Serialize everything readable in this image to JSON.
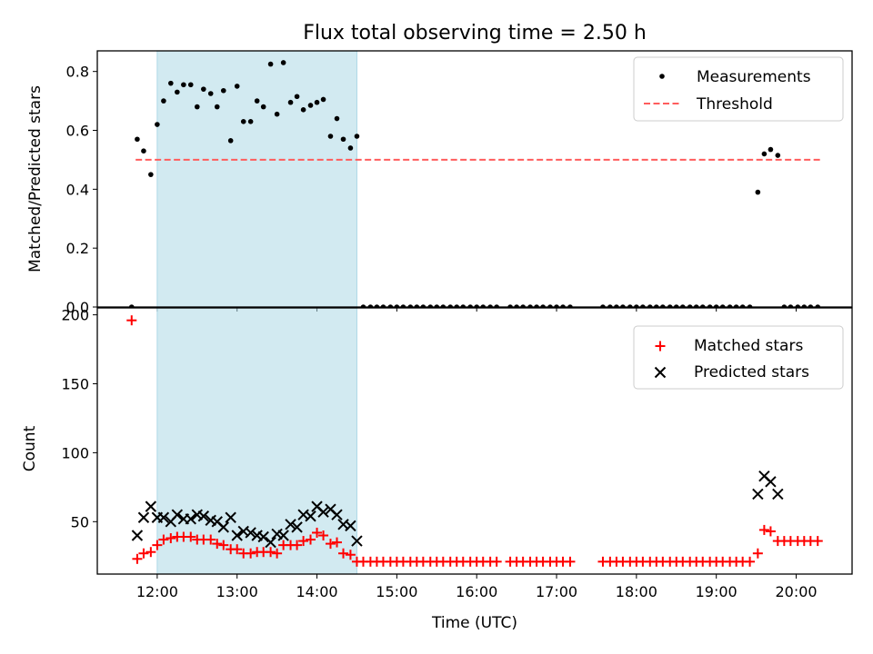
{
  "title": "Flux total observing time = 2.50 h",
  "colors": {
    "shade": "#add8e6",
    "measurement": "#000000",
    "threshold": "#ff5c5c",
    "matched": "#ff0000",
    "predicted": "#000000"
  },
  "chart_data": [
    {
      "type": "scatter",
      "ylabel": "Matched/Predicted stars",
      "xlim": [
        11.25,
        20.7
      ],
      "ylim": [
        0,
        0.87
      ],
      "yticks": [
        0.0,
        0.2,
        0.4,
        0.6,
        0.8
      ],
      "ytick_labels": [
        "0.0",
        "0.2",
        "0.4",
        "0.6",
        "0.8"
      ],
      "shaded_span": [
        12.0,
        14.5
      ],
      "legend": {
        "placement": "top-right",
        "entries": [
          "Measurements",
          "Threshold"
        ]
      },
      "threshold": {
        "name": "Threshold",
        "y": 0.5,
        "x_range": [
          11.73,
          20.3
        ],
        "style": "dashed"
      },
      "series": [
        {
          "name": "Measurements",
          "marker": "dot",
          "points": [
            [
              11.68,
              0.0
            ],
            [
              11.75,
              0.57
            ],
            [
              11.83,
              0.53
            ],
            [
              11.92,
              0.45
            ],
            [
              12.0,
              0.62
            ],
            [
              12.08,
              0.7
            ],
            [
              12.17,
              0.76
            ],
            [
              12.25,
              0.73
            ],
            [
              12.33,
              0.755
            ],
            [
              12.42,
              0.755
            ],
            [
              12.5,
              0.68
            ],
            [
              12.58,
              0.74
            ],
            [
              12.67,
              0.725
            ],
            [
              12.75,
              0.68
            ],
            [
              12.83,
              0.735
            ],
            [
              12.92,
              0.565
            ],
            [
              13.0,
              0.75
            ],
            [
              13.08,
              0.63
            ],
            [
              13.17,
              0.63
            ],
            [
              13.25,
              0.7
            ],
            [
              13.33,
              0.68
            ],
            [
              13.42,
              0.825
            ],
            [
              13.5,
              0.655
            ],
            [
              13.58,
              0.83
            ],
            [
              13.67,
              0.695
            ],
            [
              13.75,
              0.715
            ],
            [
              13.83,
              0.67
            ],
            [
              13.92,
              0.685
            ],
            [
              14.0,
              0.695
            ],
            [
              14.08,
              0.705
            ],
            [
              14.17,
              0.58
            ],
            [
              14.25,
              0.64
            ],
            [
              14.33,
              0.57
            ],
            [
              14.42,
              0.54
            ],
            [
              14.5,
              0.58
            ],
            [
              14.58,
              0.0
            ],
            [
              14.67,
              0.0
            ],
            [
              14.75,
              0.0
            ],
            [
              14.83,
              0.0
            ],
            [
              14.92,
              0.0
            ],
            [
              15.0,
              0.0
            ],
            [
              15.08,
              0.0
            ],
            [
              15.17,
              0.0
            ],
            [
              15.25,
              0.0
            ],
            [
              15.33,
              0.0
            ],
            [
              15.42,
              0.0
            ],
            [
              15.5,
              0.0
            ],
            [
              15.58,
              0.0
            ],
            [
              15.67,
              0.0
            ],
            [
              15.75,
              0.0
            ],
            [
              15.83,
              0.0
            ],
            [
              15.92,
              0.0
            ],
            [
              16.0,
              0.0
            ],
            [
              16.08,
              0.0
            ],
            [
              16.17,
              0.0
            ],
            [
              16.25,
              0.0
            ],
            [
              16.42,
              0.0
            ],
            [
              16.5,
              0.0
            ],
            [
              16.58,
              0.0
            ],
            [
              16.67,
              0.0
            ],
            [
              16.75,
              0.0
            ],
            [
              16.83,
              0.0
            ],
            [
              16.92,
              0.0
            ],
            [
              17.0,
              0.0
            ],
            [
              17.08,
              0.0
            ],
            [
              17.17,
              0.0
            ],
            [
              17.58,
              0.0
            ],
            [
              17.67,
              0.0
            ],
            [
              17.75,
              0.0
            ],
            [
              17.83,
              0.0
            ],
            [
              17.92,
              0.0
            ],
            [
              18.0,
              0.0
            ],
            [
              18.08,
              0.0
            ],
            [
              18.17,
              0.0
            ],
            [
              18.25,
              0.0
            ],
            [
              18.33,
              0.0
            ],
            [
              18.42,
              0.0
            ],
            [
              18.5,
              0.0
            ],
            [
              18.58,
              0.0
            ],
            [
              18.67,
              0.0
            ],
            [
              18.75,
              0.0
            ],
            [
              18.83,
              0.0
            ],
            [
              18.92,
              0.0
            ],
            [
              19.0,
              0.0
            ],
            [
              19.08,
              0.0
            ],
            [
              19.17,
              0.0
            ],
            [
              19.25,
              0.0
            ],
            [
              19.33,
              0.0
            ],
            [
              19.42,
              0.0
            ],
            [
              19.52,
              0.39
            ],
            [
              19.6,
              0.52
            ],
            [
              19.68,
              0.535
            ],
            [
              19.77,
              0.515
            ],
            [
              19.85,
              0.0
            ],
            [
              19.93,
              0.0
            ],
            [
              20.02,
              0.0
            ],
            [
              20.1,
              0.0
            ],
            [
              20.18,
              0.0
            ],
            [
              20.27,
              0.0
            ]
          ]
        }
      ]
    },
    {
      "type": "scatter",
      "xlabel": "Time (UTC)",
      "ylabel": "Count",
      "xlim": [
        11.25,
        20.7
      ],
      "ylim": [
        12,
        205
      ],
      "yticks": [
        50,
        100,
        150,
        200
      ],
      "ytick_labels": [
        "50",
        "100",
        "150",
        "200"
      ],
      "xticks": [
        12,
        13,
        14,
        15,
        16,
        17,
        18,
        19,
        20
      ],
      "xtick_labels": [
        "12:00",
        "13:00",
        "14:00",
        "15:00",
        "16:00",
        "17:00",
        "18:00",
        "19:00",
        "20:00"
      ],
      "shaded_span": [
        12.0,
        14.5
      ],
      "legend": {
        "placement": "top-right",
        "entries": [
          "Matched stars",
          "Predicted stars"
        ]
      },
      "series": [
        {
          "name": "Matched stars",
          "marker": "plus",
          "points": [
            [
              11.68,
              196
            ],
            [
              11.75,
              23
            ],
            [
              11.83,
              27
            ],
            [
              11.92,
              28
            ],
            [
              12.0,
              33
            ],
            [
              12.08,
              37
            ],
            [
              12.17,
              38
            ],
            [
              12.25,
              39
            ],
            [
              12.33,
              39
            ],
            [
              12.42,
              39
            ],
            [
              12.5,
              37
            ],
            [
              12.58,
              37
            ],
            [
              12.67,
              37
            ],
            [
              12.75,
              34
            ],
            [
              12.83,
              33
            ],
            [
              12.92,
              30
            ],
            [
              13.0,
              30
            ],
            [
              13.08,
              27
            ],
            [
              13.17,
              27
            ],
            [
              13.25,
              28
            ],
            [
              13.33,
              28
            ],
            [
              13.42,
              28
            ],
            [
              13.5,
              27
            ],
            [
              13.58,
              33
            ],
            [
              13.67,
              33
            ],
            [
              13.75,
              33
            ],
            [
              13.83,
              36
            ],
            [
              13.92,
              37
            ],
            [
              14.0,
              42
            ],
            [
              14.08,
              40
            ],
            [
              14.17,
              34
            ],
            [
              14.25,
              35
            ],
            [
              14.33,
              27
            ],
            [
              14.42,
              26
            ],
            [
              14.5,
              21
            ],
            [
              14.58,
              21
            ],
            [
              14.67,
              21
            ],
            [
              14.75,
              21
            ],
            [
              14.83,
              21
            ],
            [
              14.92,
              21
            ],
            [
              15.0,
              21
            ],
            [
              15.08,
              21
            ],
            [
              15.17,
              21
            ],
            [
              15.25,
              21
            ],
            [
              15.33,
              21
            ],
            [
              15.42,
              21
            ],
            [
              15.5,
              21
            ],
            [
              15.58,
              21
            ],
            [
              15.67,
              21
            ],
            [
              15.75,
              21
            ],
            [
              15.83,
              21
            ],
            [
              15.92,
              21
            ],
            [
              16.0,
              21
            ],
            [
              16.08,
              21
            ],
            [
              16.17,
              21
            ],
            [
              16.25,
              21
            ],
            [
              16.42,
              21
            ],
            [
              16.5,
              21
            ],
            [
              16.58,
              21
            ],
            [
              16.67,
              21
            ],
            [
              16.75,
              21
            ],
            [
              16.83,
              21
            ],
            [
              16.92,
              21
            ],
            [
              17.0,
              21
            ],
            [
              17.08,
              21
            ],
            [
              17.17,
              21
            ],
            [
              17.58,
              21
            ],
            [
              17.67,
              21
            ],
            [
              17.75,
              21
            ],
            [
              17.83,
              21
            ],
            [
              17.92,
              21
            ],
            [
              18.0,
              21
            ],
            [
              18.08,
              21
            ],
            [
              18.17,
              21
            ],
            [
              18.25,
              21
            ],
            [
              18.33,
              21
            ],
            [
              18.42,
              21
            ],
            [
              18.5,
              21
            ],
            [
              18.58,
              21
            ],
            [
              18.67,
              21
            ],
            [
              18.75,
              21
            ],
            [
              18.83,
              21
            ],
            [
              18.92,
              21
            ],
            [
              19.0,
              21
            ],
            [
              19.08,
              21
            ],
            [
              19.17,
              21
            ],
            [
              19.25,
              21
            ],
            [
              19.33,
              21
            ],
            [
              19.42,
              21
            ],
            [
              19.52,
              27
            ],
            [
              19.6,
              44
            ],
            [
              19.68,
              43
            ],
            [
              19.77,
              36
            ],
            [
              19.85,
              36
            ],
            [
              19.93,
              36
            ],
            [
              20.02,
              36
            ],
            [
              20.1,
              36
            ],
            [
              20.18,
              36
            ],
            [
              20.27,
              36
            ]
          ]
        },
        {
          "name": "Predicted stars",
          "marker": "x",
          "points": [
            [
              11.75,
              40
            ],
            [
              11.83,
              53
            ],
            [
              11.92,
              61
            ],
            [
              12.0,
              53
            ],
            [
              12.08,
              53
            ],
            [
              12.17,
              50
            ],
            [
              12.25,
              55
            ],
            [
              12.33,
              52
            ],
            [
              12.42,
              52
            ],
            [
              12.5,
              55
            ],
            [
              12.58,
              54
            ],
            [
              12.67,
              51
            ],
            [
              12.75,
              50
            ],
            [
              12.83,
              46
            ],
            [
              12.92,
              53
            ],
            [
              13.0,
              40
            ],
            [
              13.08,
              43
            ],
            [
              13.17,
              42
            ],
            [
              13.25,
              40
            ],
            [
              13.33,
              39
            ],
            [
              13.42,
              35
            ],
            [
              13.5,
              41
            ],
            [
              13.58,
              40
            ],
            [
              13.67,
              48
            ],
            [
              13.75,
              46
            ],
            [
              13.83,
              55
            ],
            [
              13.92,
              54
            ],
            [
              14.0,
              61
            ],
            [
              14.08,
              57
            ],
            [
              14.17,
              59
            ],
            [
              14.25,
              55
            ],
            [
              14.33,
              48
            ],
            [
              14.42,
              47
            ],
            [
              14.5,
              36
            ],
            [
              19.52,
              70
            ],
            [
              19.6,
              83
            ],
            [
              19.68,
              79
            ],
            [
              19.77,
              70
            ]
          ]
        }
      ]
    }
  ]
}
